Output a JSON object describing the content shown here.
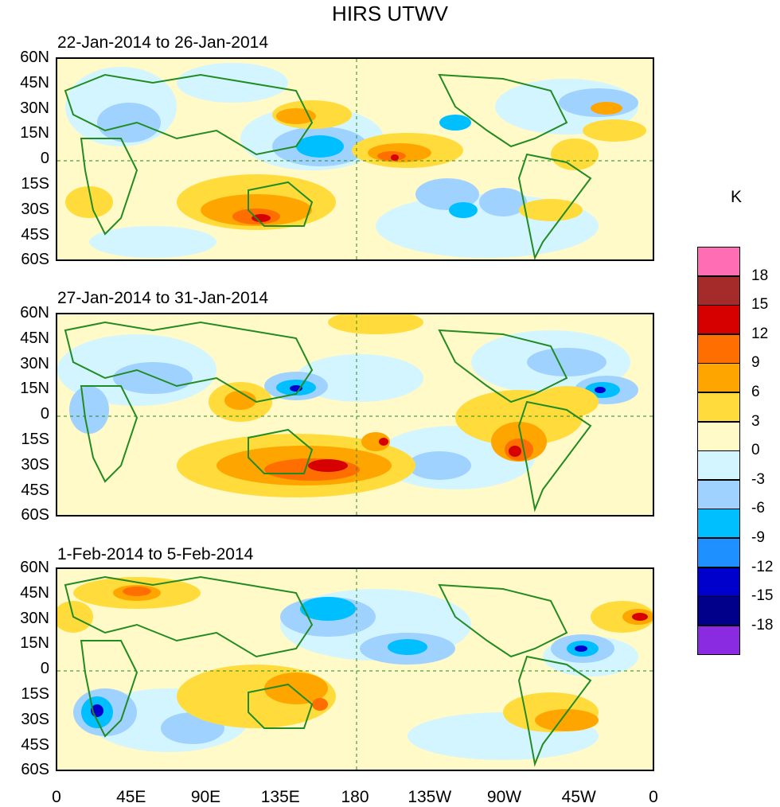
{
  "title": "HIRS UTWV",
  "panels": [
    {
      "subtitle": "22-Jan-2014 to 26-Jan-2014"
    },
    {
      "subtitle": "27-Jan-2014 to 31-Jan-2014"
    },
    {
      "subtitle": "1-Feb-2014 to 5-Feb-2014"
    }
  ],
  "lat_labels": [
    "60N",
    "45N",
    "30N",
    "15N",
    "0",
    "15S",
    "30S",
    "45S",
    "60S"
  ],
  "lon_labels": [
    "0",
    "45E",
    "90E",
    "135E",
    "180",
    "135W",
    "90W",
    "45W",
    "0"
  ],
  "colorbar": {
    "unit": "K",
    "labels": [
      "18",
      "15",
      "12",
      "9",
      "6",
      "3",
      "0",
      "-3",
      "-6",
      "-9",
      "-12",
      "-15",
      "-18"
    ],
    "colors": [
      "#ff6eb4",
      "#a52a2a",
      "#d70000",
      "#ff6e00",
      "#ffa500",
      "#ffdc3c",
      "#fffac8",
      "#d2f5ff",
      "#a0d2ff",
      "#00bfff",
      "#1e90ff",
      "#0000cd",
      "#00008b",
      "#8a2be2"
    ]
  }
}
